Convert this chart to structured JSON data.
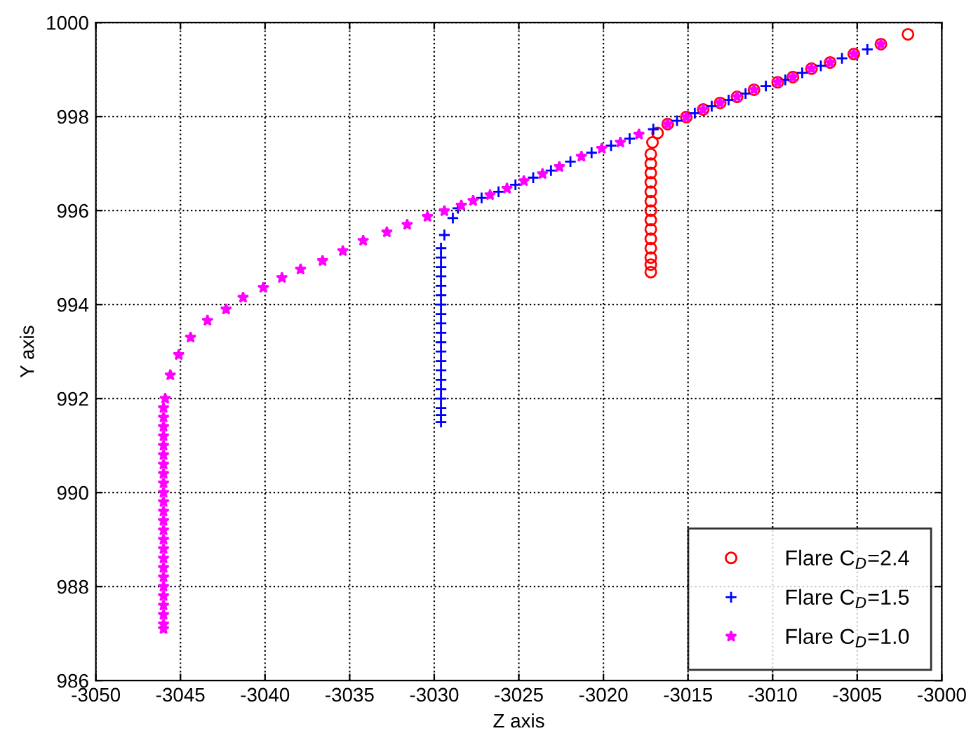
{
  "chart_data": {
    "type": "scatter",
    "xlabel": "Z axis",
    "ylabel": "Y axis",
    "xlim": [
      -3050,
      -3000
    ],
    "ylim": [
      986,
      1000
    ],
    "xticks": [
      -3050,
      -3045,
      -3040,
      -3035,
      -3030,
      -3025,
      -3020,
      -3015,
      -3010,
      -3005,
      -3000
    ],
    "yticks": [
      986,
      988,
      990,
      992,
      994,
      996,
      998,
      1000
    ],
    "grid": true,
    "legend": "bottom right",
    "series": [
      {
        "name": "Flare C$_{D}$=2.4",
        "color": "#ff0000",
        "marker": "circle",
        "x": [
          -3002.0,
          -3003.6,
          -3005.2,
          -3006.6,
          -3007.7,
          -3008.8,
          -3009.7,
          -3011.1,
          -3012.1,
          -3013.1,
          -3014.1,
          -3015.1,
          -3016.2,
          -3016.8,
          -3017.1,
          -3017.2,
          -3017.2,
          -3017.2,
          -3017.2,
          -3017.2,
          -3017.2,
          -3017.2,
          -3017.2,
          -3017.2,
          -3017.2,
          -3017.2,
          -3017.2,
          -3017.2,
          -3017.2
        ],
        "values": [
          999.75,
          999.54,
          999.33,
          999.15,
          999.02,
          998.84,
          998.73,
          998.57,
          998.42,
          998.29,
          998.15,
          997.99,
          997.84,
          997.65,
          997.45,
          997.2,
          997.0,
          996.8,
          996.6,
          996.4,
          996.2,
          996.0,
          995.8,
          995.6,
          995.4,
          995.2,
          995.0,
          994.85,
          994.69
        ]
      },
      {
        "name": "Flare C$_{D}$=1.5",
        "color": "#0000ff",
        "marker": "cross",
        "x": [
          -3004.4,
          -3005.9,
          -3007.15,
          -3008.25,
          -3009.25,
          -3010.4,
          -3011.6,
          -3012.6,
          -3013.6,
          -3014.6,
          -3015.65,
          -3017.05,
          -3018.45,
          -3019.55,
          -3020.7,
          -3021.95,
          -3023.1,
          -3024.15,
          -3025.2,
          -3026.2,
          -3027.2,
          -3028.6,
          -3028.9,
          -3029.4,
          -3029.6,
          -3029.6,
          -3029.6,
          -3029.6,
          -3029.6,
          -3029.6,
          -3029.6,
          -3029.6,
          -3029.6,
          -3029.6,
          -3029.6,
          -3029.6,
          -3029.6,
          -3029.6,
          -3029.6,
          -3029.6,
          -3029.6,
          -3029.6,
          -3029.6,
          -3029.6
        ],
        "values": [
          999.43,
          999.24,
          999.08,
          998.93,
          998.78,
          998.65,
          998.49,
          998.35,
          998.22,
          998.07,
          997.91,
          997.73,
          997.53,
          997.38,
          997.23,
          997.04,
          996.85,
          996.7,
          996.55,
          996.4,
          996.27,
          996.05,
          995.84,
          995.48,
          995.2,
          995.0,
          994.8,
          994.6,
          994.4,
          994.2,
          994.0,
          993.8,
          993.6,
          993.4,
          993.2,
          993.0,
          992.8,
          992.6,
          992.4,
          992.2,
          992.0,
          991.8,
          991.65,
          991.5
        ]
      },
      {
        "name": "Flare C$_{D}$=1.0",
        "color": "#ff00ff",
        "marker": "star",
        "x": [
          -3003.6,
          -3005.2,
          -3006.6,
          -3007.7,
          -3008.8,
          -3009.7,
          -3011.1,
          -3012.1,
          -3013.1,
          -3014.1,
          -3015.1,
          -3016.2,
          -3017.9,
          -3019.0,
          -3020.1,
          -3021.3,
          -3022.6,
          -3023.6,
          -3024.7,
          -3025.7,
          -3026.7,
          -3027.7,
          -3028.4,
          -3029.4,
          -3030.4,
          -3031.6,
          -3032.8,
          -3034.2,
          -3035.4,
          -3036.6,
          -3037.9,
          -3039.0,
          -3040.1,
          -3041.3,
          -3042.3,
          -3043.4,
          -3044.4,
          -3045.1,
          -3045.6,
          -3045.9,
          -3046.0,
          -3046.0,
          -3046.0,
          -3046.0,
          -3046.0,
          -3046.0,
          -3046.0,
          -3046.0,
          -3046.0,
          -3046.0,
          -3046.0,
          -3046.0,
          -3046.0,
          -3046.0,
          -3046.0,
          -3046.0,
          -3046.0,
          -3046.0,
          -3046.0,
          -3046.0,
          -3046.0,
          -3046.0,
          -3046.0,
          -3046.0,
          -3046.0
        ],
        "values": [
          999.54,
          999.33,
          999.15,
          999.02,
          998.84,
          998.73,
          998.57,
          998.42,
          998.29,
          998.15,
          997.99,
          997.84,
          997.62,
          997.45,
          997.32,
          997.15,
          996.93,
          996.78,
          996.63,
          996.47,
          996.33,
          996.21,
          996.11,
          995.99,
          995.87,
          995.7,
          995.54,
          995.36,
          995.14,
          994.93,
          994.75,
          994.57,
          994.36,
          994.15,
          993.9,
          993.66,
          993.3,
          992.93,
          992.5,
          992.0,
          991.8,
          991.6,
          991.4,
          991.2,
          991.0,
          990.8,
          990.6,
          990.4,
          990.2,
          990.0,
          989.8,
          989.6,
          989.4,
          989.2,
          989.0,
          988.8,
          988.6,
          988.4,
          988.2,
          988.0,
          987.8,
          987.6,
          987.4,
          987.2,
          987.1
        ]
      }
    ]
  }
}
